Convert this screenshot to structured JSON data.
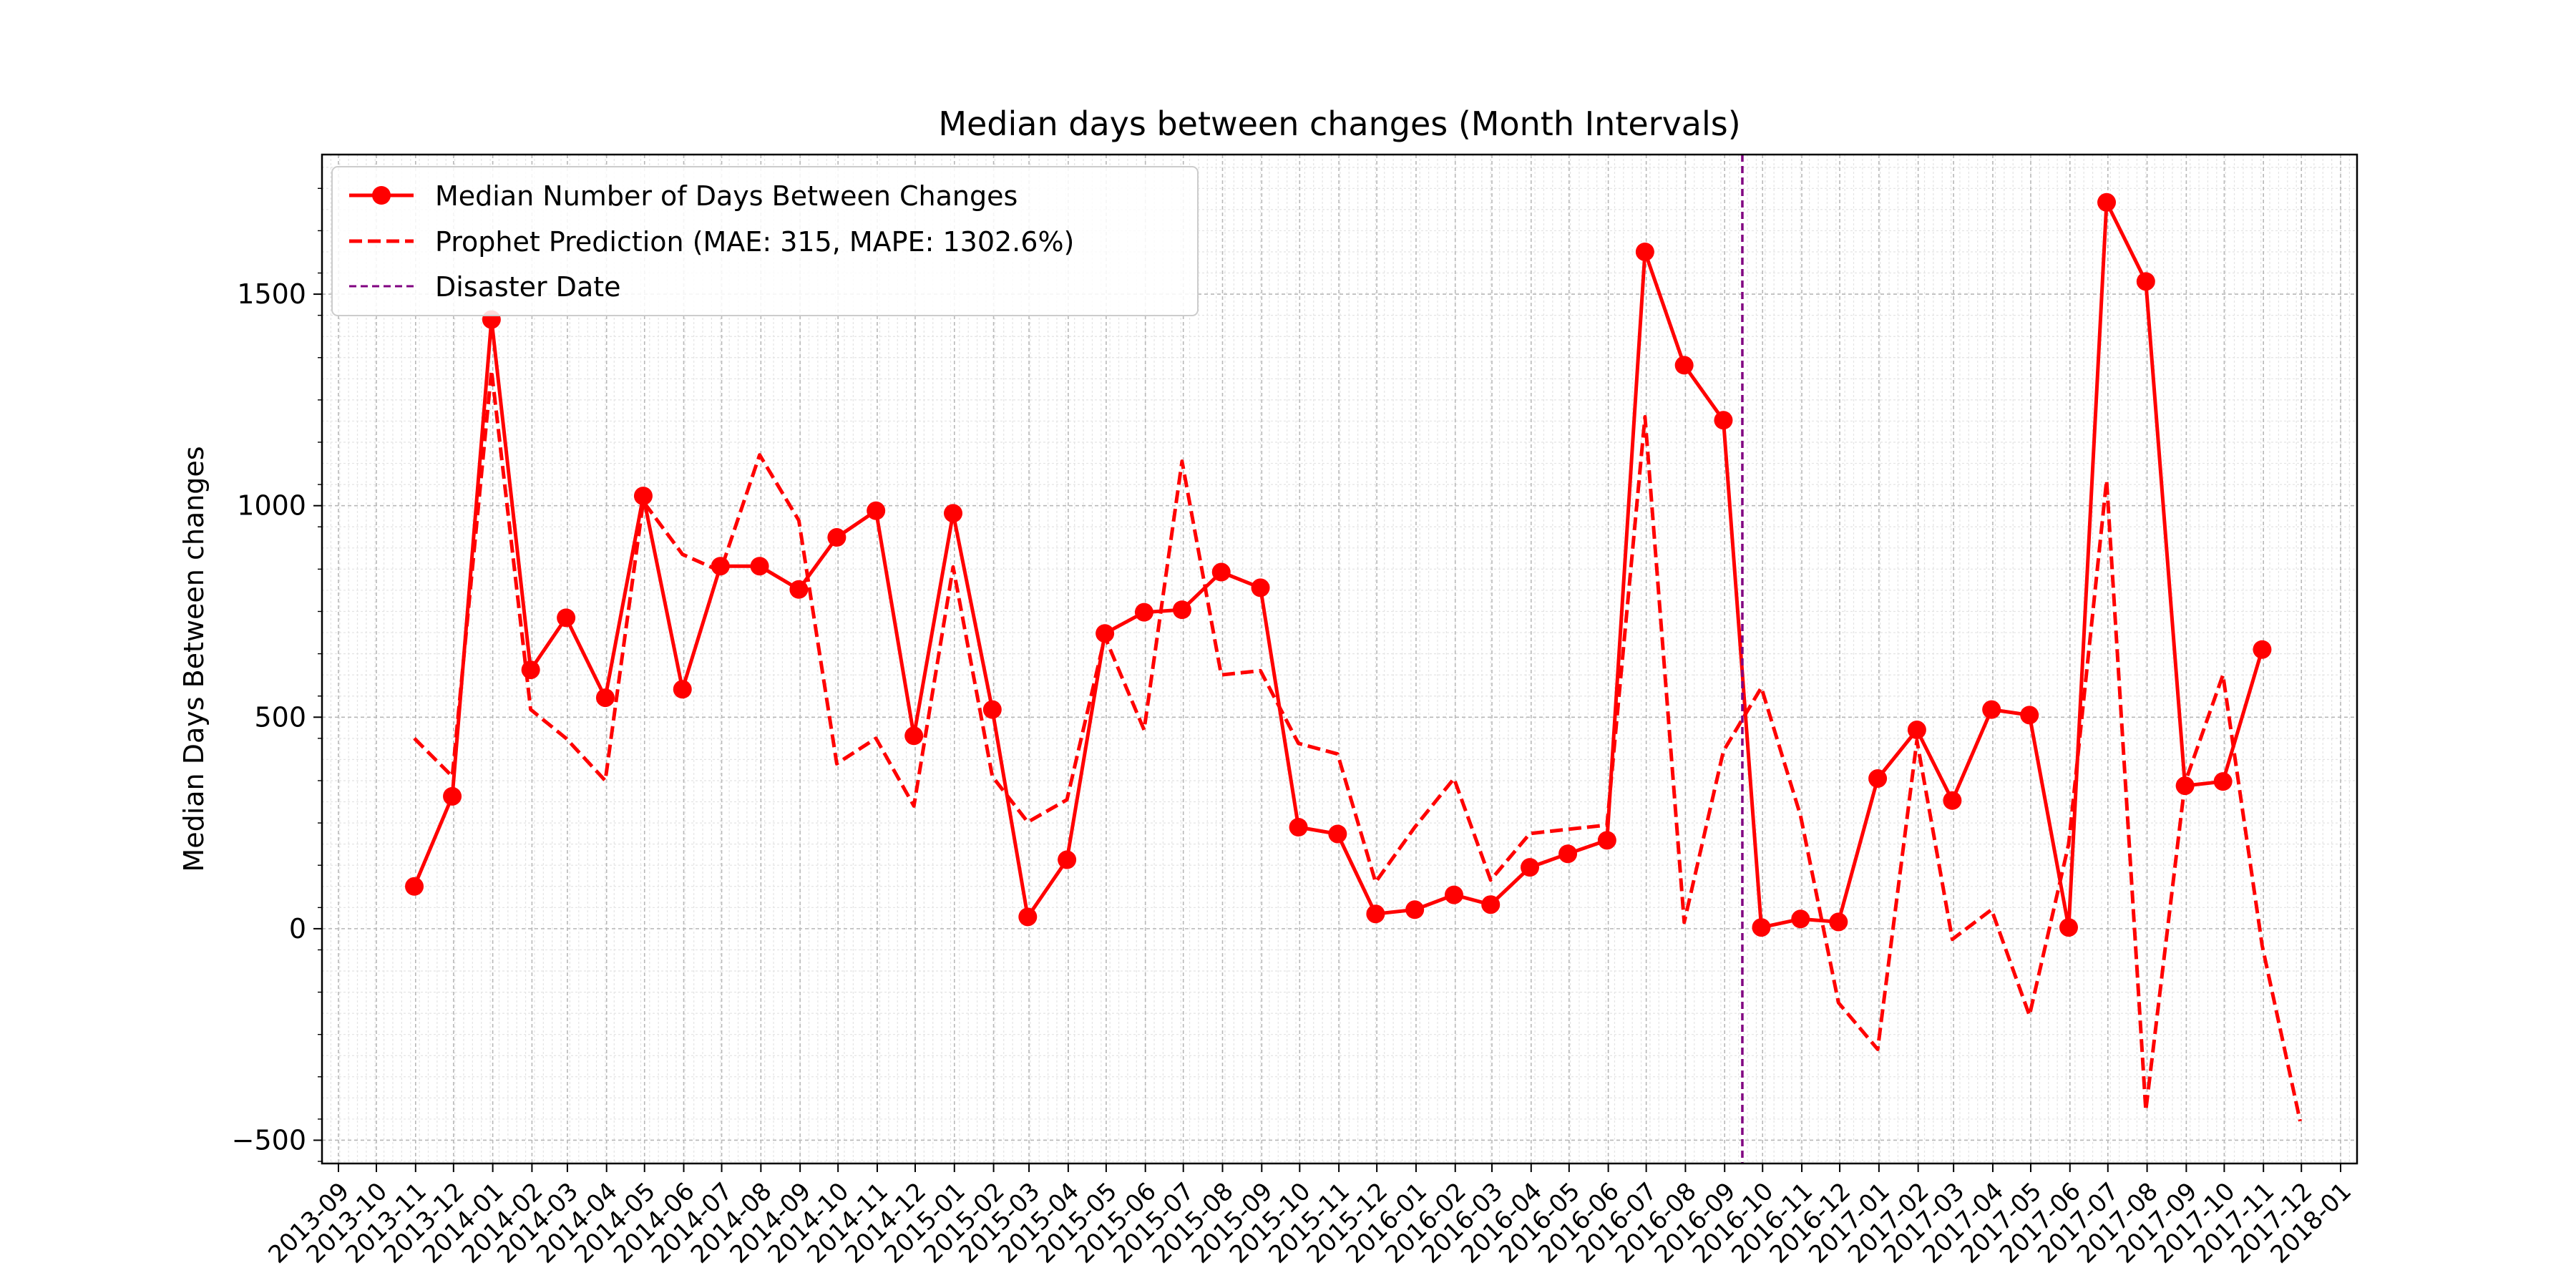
{
  "chart_data": {
    "type": "line",
    "title": "Median days between changes (Month Intervals)",
    "xlabel": "",
    "ylabel": "Median Days Between changes",
    "x_axis_kind": "date",
    "xlim": [
      "2013-08-19",
      "2018-01-14"
    ],
    "ylim": [
      -555,
      1830
    ],
    "yticks": [
      -500,
      0,
      500,
      1000,
      1500
    ],
    "xtick_labels": [
      "2013-09",
      "2013-10",
      "2013-11",
      "2013-12",
      "2014-01",
      "2014-02",
      "2014-03",
      "2014-04",
      "2014-05",
      "2014-06",
      "2014-07",
      "2014-08",
      "2014-09",
      "2014-10",
      "2014-11",
      "2014-12",
      "2015-01",
      "2015-02",
      "2015-03",
      "2015-04",
      "2015-05",
      "2015-06",
      "2015-07",
      "2015-08",
      "2015-09",
      "2015-10",
      "2015-11",
      "2015-12",
      "2016-01",
      "2016-02",
      "2016-03",
      "2016-04",
      "2016-05",
      "2016-06",
      "2016-07",
      "2016-08",
      "2016-09",
      "2016-10",
      "2016-11",
      "2016-12",
      "2017-01",
      "2017-02",
      "2017-03",
      "2017-04",
      "2017-05",
      "2017-06",
      "2017-07",
      "2017-08",
      "2017-09",
      "2017-10",
      "2017-11",
      "2017-12",
      "2018-01"
    ],
    "grid": true,
    "legend_position": "top-left",
    "series": [
      {
        "name": "Median Number of Days Between Changes",
        "style": "solid-with-markers",
        "color": "#ff0000",
        "points": [
          [
            "2013-10-31",
            100
          ],
          [
            "2013-11-30",
            313
          ],
          [
            "2013-12-31",
            1440
          ],
          [
            "2014-01-31",
            612
          ],
          [
            "2014-02-28",
            735
          ],
          [
            "2014-03-31",
            546
          ],
          [
            "2014-04-30",
            1023
          ],
          [
            "2014-05-31",
            566
          ],
          [
            "2014-06-30",
            857
          ],
          [
            "2014-07-31",
            857
          ],
          [
            "2014-08-31",
            802
          ],
          [
            "2014-09-30",
            925
          ],
          [
            "2014-10-31",
            988
          ],
          [
            "2014-11-30",
            456
          ],
          [
            "2014-12-31",
            982
          ],
          [
            "2015-01-31",
            518
          ],
          [
            "2015-02-28",
            28
          ],
          [
            "2015-03-31",
            163
          ],
          [
            "2015-04-30",
            698
          ],
          [
            "2015-05-31",
            748
          ],
          [
            "2015-06-30",
            754
          ],
          [
            "2015-07-31",
            843
          ],
          [
            "2015-08-31",
            806
          ],
          [
            "2015-09-30",
            240
          ],
          [
            "2015-10-31",
            224
          ],
          [
            "2015-11-30",
            35
          ],
          [
            "2015-12-31",
            45
          ],
          [
            "2016-01-31",
            80
          ],
          [
            "2016-02-29",
            57
          ],
          [
            "2016-03-31",
            145
          ],
          [
            "2016-04-30",
            177
          ],
          [
            "2016-05-31",
            209
          ],
          [
            "2016-06-30",
            1600
          ],
          [
            "2016-07-31",
            1332
          ],
          [
            "2016-08-31",
            1202
          ],
          [
            "2016-09-30",
            3
          ],
          [
            "2016-10-31",
            23
          ],
          [
            "2016-11-30",
            16
          ],
          [
            "2016-12-31",
            355
          ],
          [
            "2017-01-31",
            470
          ],
          [
            "2017-02-28",
            303
          ],
          [
            "2017-03-31",
            518
          ],
          [
            "2017-04-30",
            505
          ],
          [
            "2017-05-31",
            3
          ],
          [
            "2017-06-30",
            1717
          ],
          [
            "2017-07-31",
            1530
          ],
          [
            "2017-08-31",
            338
          ],
          [
            "2017-09-30",
            348
          ],
          [
            "2017-10-31",
            660
          ]
        ]
      },
      {
        "name": "Prophet Prediction (MAE: 315, MAPE: 1302.6%)",
        "style": "dashed",
        "color": "#ff0000",
        "points": [
          [
            "2013-10-31",
            450
          ],
          [
            "2013-11-30",
            360
          ],
          [
            "2013-12-31",
            1320
          ],
          [
            "2014-01-31",
            518
          ],
          [
            "2014-02-28",
            450
          ],
          [
            "2014-03-31",
            350
          ],
          [
            "2014-04-30",
            1010
          ],
          [
            "2014-05-31",
            885
          ],
          [
            "2014-06-30",
            845
          ],
          [
            "2014-07-31",
            1120
          ],
          [
            "2014-08-31",
            965
          ],
          [
            "2014-09-30",
            390
          ],
          [
            "2014-10-31",
            450
          ],
          [
            "2014-11-30",
            290
          ],
          [
            "2014-12-31",
            855
          ],
          [
            "2015-01-31",
            360
          ],
          [
            "2015-02-28",
            252
          ],
          [
            "2015-03-31",
            305
          ],
          [
            "2015-04-30",
            690
          ],
          [
            "2015-05-31",
            470
          ],
          [
            "2015-06-30",
            1105
          ],
          [
            "2015-07-31",
            600
          ],
          [
            "2015-08-31",
            610
          ],
          [
            "2015-09-30",
            438
          ],
          [
            "2015-10-31",
            413
          ],
          [
            "2015-11-30",
            110
          ],
          [
            "2015-12-31",
            240
          ],
          [
            "2016-01-31",
            355
          ],
          [
            "2016-02-29",
            115
          ],
          [
            "2016-03-31",
            225
          ],
          [
            "2016-04-30",
            235
          ],
          [
            "2016-05-31",
            245
          ],
          [
            "2016-06-30",
            1210
          ],
          [
            "2016-07-31",
            15
          ],
          [
            "2016-08-31",
            420
          ],
          [
            "2016-09-30",
            570
          ],
          [
            "2016-10-31",
            267
          ],
          [
            "2016-11-30",
            -175
          ],
          [
            "2016-12-31",
            -285
          ],
          [
            "2017-01-31",
            445
          ],
          [
            "2017-02-28",
            -25
          ],
          [
            "2017-03-31",
            45
          ],
          [
            "2017-04-30",
            -205
          ],
          [
            "2017-05-31",
            200
          ],
          [
            "2017-06-30",
            1060
          ],
          [
            "2017-07-31",
            -430
          ],
          [
            "2017-08-31",
            345
          ],
          [
            "2017-09-30",
            600
          ],
          [
            "2017-10-31",
            -40
          ],
          [
            "2017-11-30",
            -455
          ]
        ]
      }
    ],
    "vlines": [
      {
        "name": "Disaster Date",
        "x": "2016-09-15",
        "color": "#800080",
        "style": "dashed"
      }
    ]
  }
}
